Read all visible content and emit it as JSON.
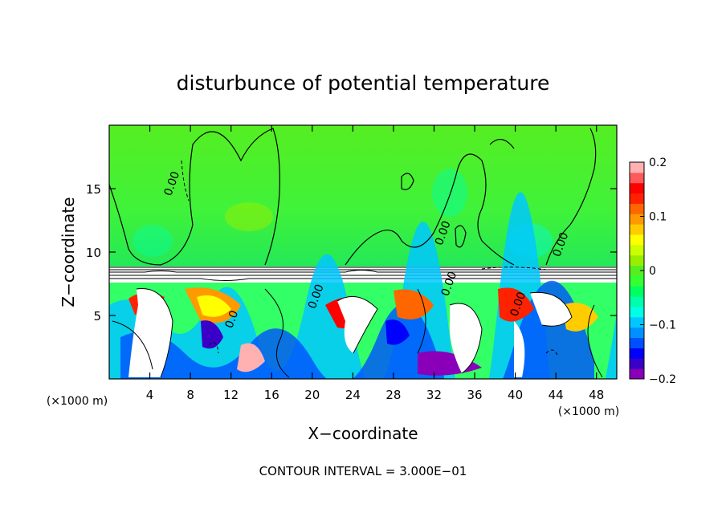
{
  "chart_data": {
    "type": "heatmap",
    "title": "disturbunce of potential temperature",
    "xlabel": "X−coordinate",
    "ylabel": "Z−coordinate",
    "x_unit_label": "(×1000 m)",
    "y_unit_label": "(×1000 m)",
    "xlim": [
      0,
      50
    ],
    "ylim": [
      0,
      20
    ],
    "x_ticks": [
      4,
      8,
      12,
      16,
      20,
      24,
      28,
      32,
      36,
      40,
      44,
      48
    ],
    "y_ticks": [
      5,
      10,
      15
    ],
    "colorbar": {
      "min": -0.2,
      "max": 0.2,
      "ticks": [
        0.2,
        0.1,
        0,
        -0.1,
        -0.2
      ],
      "tick_labels": [
        "0.2",
        "0.1",
        "0",
        "−0.1",
        "−0.2"
      ],
      "colors": [
        "#8a00b8",
        "#3a00c8",
        "#0000ff",
        "#0050ff",
        "#0090ff",
        "#00c8ff",
        "#00ffe6",
        "#00ffaa",
        "#00ff60",
        "#33ff33",
        "#55ee22",
        "#99ee00",
        "#ccff00",
        "#ffff00",
        "#ffcc00",
        "#ff9900",
        "#ff6600",
        "#ff2200",
        "#ff0000",
        "#ff5a5a",
        "#ffb0b0"
      ]
    },
    "background_value": 0.0,
    "contour_labels": [
      {
        "x": 6.5,
        "z": 15.3,
        "text": "0.00"
      },
      {
        "x": 33.2,
        "z": 11.4,
        "text": "0.00"
      },
      {
        "x": 44.8,
        "z": 10.5,
        "text": "0.00"
      },
      {
        "x": 20.7,
        "z": 6.4,
        "text": "0.00"
      },
      {
        "x": 33.8,
        "z": 7.4,
        "text": "0.00"
      },
      {
        "x": 40.6,
        "z": 5.8,
        "text": "0.00"
      },
      {
        "x": 12.4,
        "z": 4.6,
        "text": "0.0"
      }
    ],
    "annotation": "CONTOUR INTERVAL = 3.000E−01"
  }
}
